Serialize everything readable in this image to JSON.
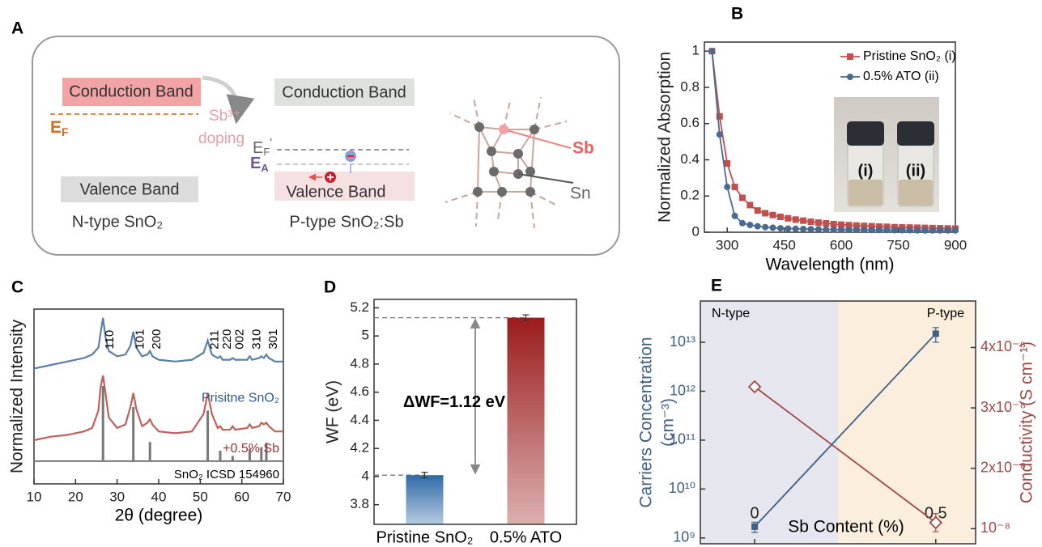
{
  "diagram": {
    "panel_label": "A",
    "n_type": {
      "conduction_band": "Conduction Band",
      "fermi_level": {
        "symbol": "E",
        "subscript": "F"
      },
      "dopant": "Sb³⁺",
      "doping": "doping",
      "valence_band": "Valence Band",
      "caption": "N-type SnO₂"
    },
    "p_type": {
      "conduction_band": "Conduction Band",
      "fermi_level": {
        "symbol": "E",
        "subscript": "F",
        "superscript": "'"
      },
      "acceptor_level": {
        "symbol": "E",
        "subscript": "A"
      },
      "valence_band": "Valence Band",
      "caption": "P-type SnO₂:Sb"
    },
    "lattice": {
      "dopant_atom": "Sb",
      "host_atom": "Sn"
    }
  },
  "chart_data": [
    {
      "panel_label": "B",
      "type": "line",
      "x_label": "Wavelength (nm)",
      "y_label": "Normalized Absorption",
      "x": [
        260,
        280,
        300,
        320,
        340,
        360,
        380,
        400,
        420,
        440,
        460,
        480,
        500,
        520,
        540,
        560,
        580,
        600,
        620,
        640,
        660,
        680,
        700,
        720,
        740,
        760,
        780,
        800,
        820,
        840,
        860,
        880,
        900
      ],
      "series": [
        {
          "name": "Pristine SnO₂ (i)",
          "color": "#c0504d",
          "marker": "square",
          "values": [
            1.0,
            0.64,
            0.38,
            0.25,
            0.19,
            0.15,
            0.12,
            0.105,
            0.095,
            0.085,
            0.077,
            0.07,
            0.064,
            0.058,
            0.053,
            0.049,
            0.045,
            0.042,
            0.039,
            0.037,
            0.035,
            0.033,
            0.031,
            0.03,
            0.028,
            0.027,
            0.026,
            0.025,
            0.024,
            0.023,
            0.022,
            0.021,
            0.02
          ]
        },
        {
          "name": "0.5% ATO (ii)",
          "color": "#4a6a8f",
          "marker": "circle",
          "values": [
            1.0,
            0.54,
            0.25,
            0.09,
            0.05,
            0.04,
            0.033,
            0.028,
            0.025,
            0.022,
            0.02,
            0.019,
            0.018,
            0.017,
            0.016,
            0.015,
            0.015,
            0.014,
            0.014,
            0.013,
            0.013,
            0.012,
            0.012,
            0.012,
            0.011,
            0.011,
            0.011,
            0.01,
            0.01,
            0.01,
            0.01,
            0.01,
            0.01
          ]
        }
      ],
      "xlim": [
        240,
        900
      ],
      "ylim": [
        0,
        1.05
      ],
      "xticks": [
        300,
        450,
        600,
        750,
        900
      ],
      "yticks": [
        0,
        0.2,
        0.4,
        0.6,
        0.8,
        1
      ],
      "legend": "top-right",
      "inset_labels": [
        "(i)",
        "(ii)"
      ]
    },
    {
      "panel_label": "C",
      "type": "line",
      "x_label": "2θ (degree)",
      "y_label": "Normalized Intensity",
      "x": [
        10,
        14,
        18,
        22,
        24,
        25.5,
        26,
        26.6,
        27.2,
        28,
        30,
        32,
        33.2,
        33.9,
        34.6,
        36,
        37.3,
        37.9,
        38.5,
        40,
        44,
        48,
        50.8,
        51.8,
        52.8,
        54.2,
        54.8,
        55.4,
        57.2,
        57.8,
        58.4,
        61.3,
        61.9,
        62.5,
        64.2,
        64.7,
        65.3,
        65.9,
        66.5,
        68,
        70
      ],
      "series": [
        {
          "name": "Prisitne SnO₂",
          "color": "#5b7fa6",
          "values": [
            0.66,
            0.68,
            0.7,
            0.72,
            0.74,
            0.78,
            0.86,
            0.95,
            0.84,
            0.76,
            0.73,
            0.74,
            0.79,
            0.87,
            0.78,
            0.73,
            0.74,
            0.76,
            0.73,
            0.71,
            0.7,
            0.71,
            0.75,
            0.82,
            0.74,
            0.72,
            0.73,
            0.71,
            0.71,
            0.72,
            0.71,
            0.71,
            0.73,
            0.71,
            0.72,
            0.73,
            0.72,
            0.74,
            0.72,
            0.7,
            0.7
          ]
        },
        {
          "name": "+0.5% Sb",
          "color": "#c0605a",
          "values": [
            0.25,
            0.27,
            0.28,
            0.3,
            0.32,
            0.42,
            0.55,
            0.62,
            0.52,
            0.38,
            0.32,
            0.34,
            0.44,
            0.52,
            0.43,
            0.33,
            0.35,
            0.37,
            0.34,
            0.3,
            0.29,
            0.3,
            0.4,
            0.52,
            0.4,
            0.32,
            0.33,
            0.31,
            0.31,
            0.33,
            0.31,
            0.32,
            0.34,
            0.32,
            0.33,
            0.35,
            0.34,
            0.35,
            0.33,
            0.3,
            0.3
          ]
        }
      ],
      "reference": {
        "name": "SnO₂ ICSD 154960",
        "color": "#777777",
        "baseline": 0.13,
        "x": [
          26.6,
          33.9,
          37.9,
          51.8,
          54.8,
          57.8,
          61.9,
          64.7,
          65.9
        ],
        "values": [
          0.56,
          0.44,
          0.24,
          0.42,
          0.19,
          0.16,
          0.2,
          0.21,
          0.235
        ]
      },
      "peak_labels": [
        {
          "text": "110",
          "x": 26.6
        },
        {
          "text": "101",
          "x": 33.9
        },
        {
          "text": "200",
          "x": 37.9
        },
        {
          "text": "211",
          "x": 51.8
        },
        {
          "text": "220",
          "x": 54.8
        },
        {
          "text": "002",
          "x": 57.8
        },
        {
          "text": "310",
          "x": 61.9
        },
        {
          "text": "301",
          "x": 65.9
        }
      ],
      "xlim": [
        10,
        70
      ],
      "ylim": [
        0,
        1
      ],
      "xticks": [
        10,
        20,
        30,
        40,
        50,
        60,
        70
      ]
    },
    {
      "panel_label": "D",
      "type": "bar",
      "y_label": "WF (eV)",
      "categories": [
        "Pristine SnO₂",
        "0.5% ATO"
      ],
      "values": [
        4.01,
        5.13
      ],
      "errors": [
        0.02,
        0.02
      ],
      "colors": [
        "#2f6aa6",
        "#9b1c1c"
      ],
      "ylim": [
        3.66,
        5.26
      ],
      "yticks": [
        3.8,
        4,
        4.2,
        4.4,
        4.6,
        4.8,
        5,
        5.2
      ],
      "annotation": "ΔWF=1.12 eV"
    },
    {
      "panel_label": "E",
      "type": "line",
      "x_label": "Sb Content (%)",
      "y_label": [
        "Carriers Concentration",
        "(cm⁻³)"
      ],
      "y2_label": "Conductivity (S cm⁻¹)",
      "x": [
        0,
        0.5
      ],
      "series": [
        {
          "color": "#3e5f87",
          "marker": "square",
          "values": [
            1700000000.0,
            15000000000000.0
          ],
          "errors": [
            400000000.0,
            5000000000000.0
          ]
        },
        {
          "color": "#a04848",
          "marker": "diamond",
          "axis": "y2",
          "values": [
            3.35e-08,
            1.1e-08
          ],
          "errors": [
            5e-10,
            1.5e-09
          ]
        }
      ],
      "xlim": [
        -0.15,
        0.61
      ],
      "xticks": [
        0,
        0.5
      ],
      "ylim": [
        760000000.0,
        70000000000000.0
      ],
      "ylog": true,
      "yticks": [
        {
          "value": 1000000000.0,
          "label": "10⁹"
        },
        {
          "value": 10000000000.0,
          "label": "10¹⁰"
        },
        {
          "value": 100000000000.0,
          "label": "10¹¹"
        },
        {
          "value": 1000000000000.0,
          "label": "10¹²"
        },
        {
          "value": 10000000000000.0,
          "label": "10¹³"
        }
      ],
      "y2lim": [
        7.5e-09,
        4.77e-08
      ],
      "y2ticks": [
        {
          "value": 1e-08,
          "label": "10⁻⁸"
        },
        {
          "value": 2e-08,
          "label": "2x10⁻⁸"
        },
        {
          "value": 3e-08,
          "label": "3x10⁻⁸"
        },
        {
          "value": 4e-08,
          "label": "4x10⁻⁸"
        }
      ],
      "regions": [
        {
          "label": "N-type",
          "color": "#e6e6ee"
        },
        {
          "label": "P-type",
          "color": "#fbeedd"
        }
      ],
      "region_boundary": 0.23
    }
  ]
}
